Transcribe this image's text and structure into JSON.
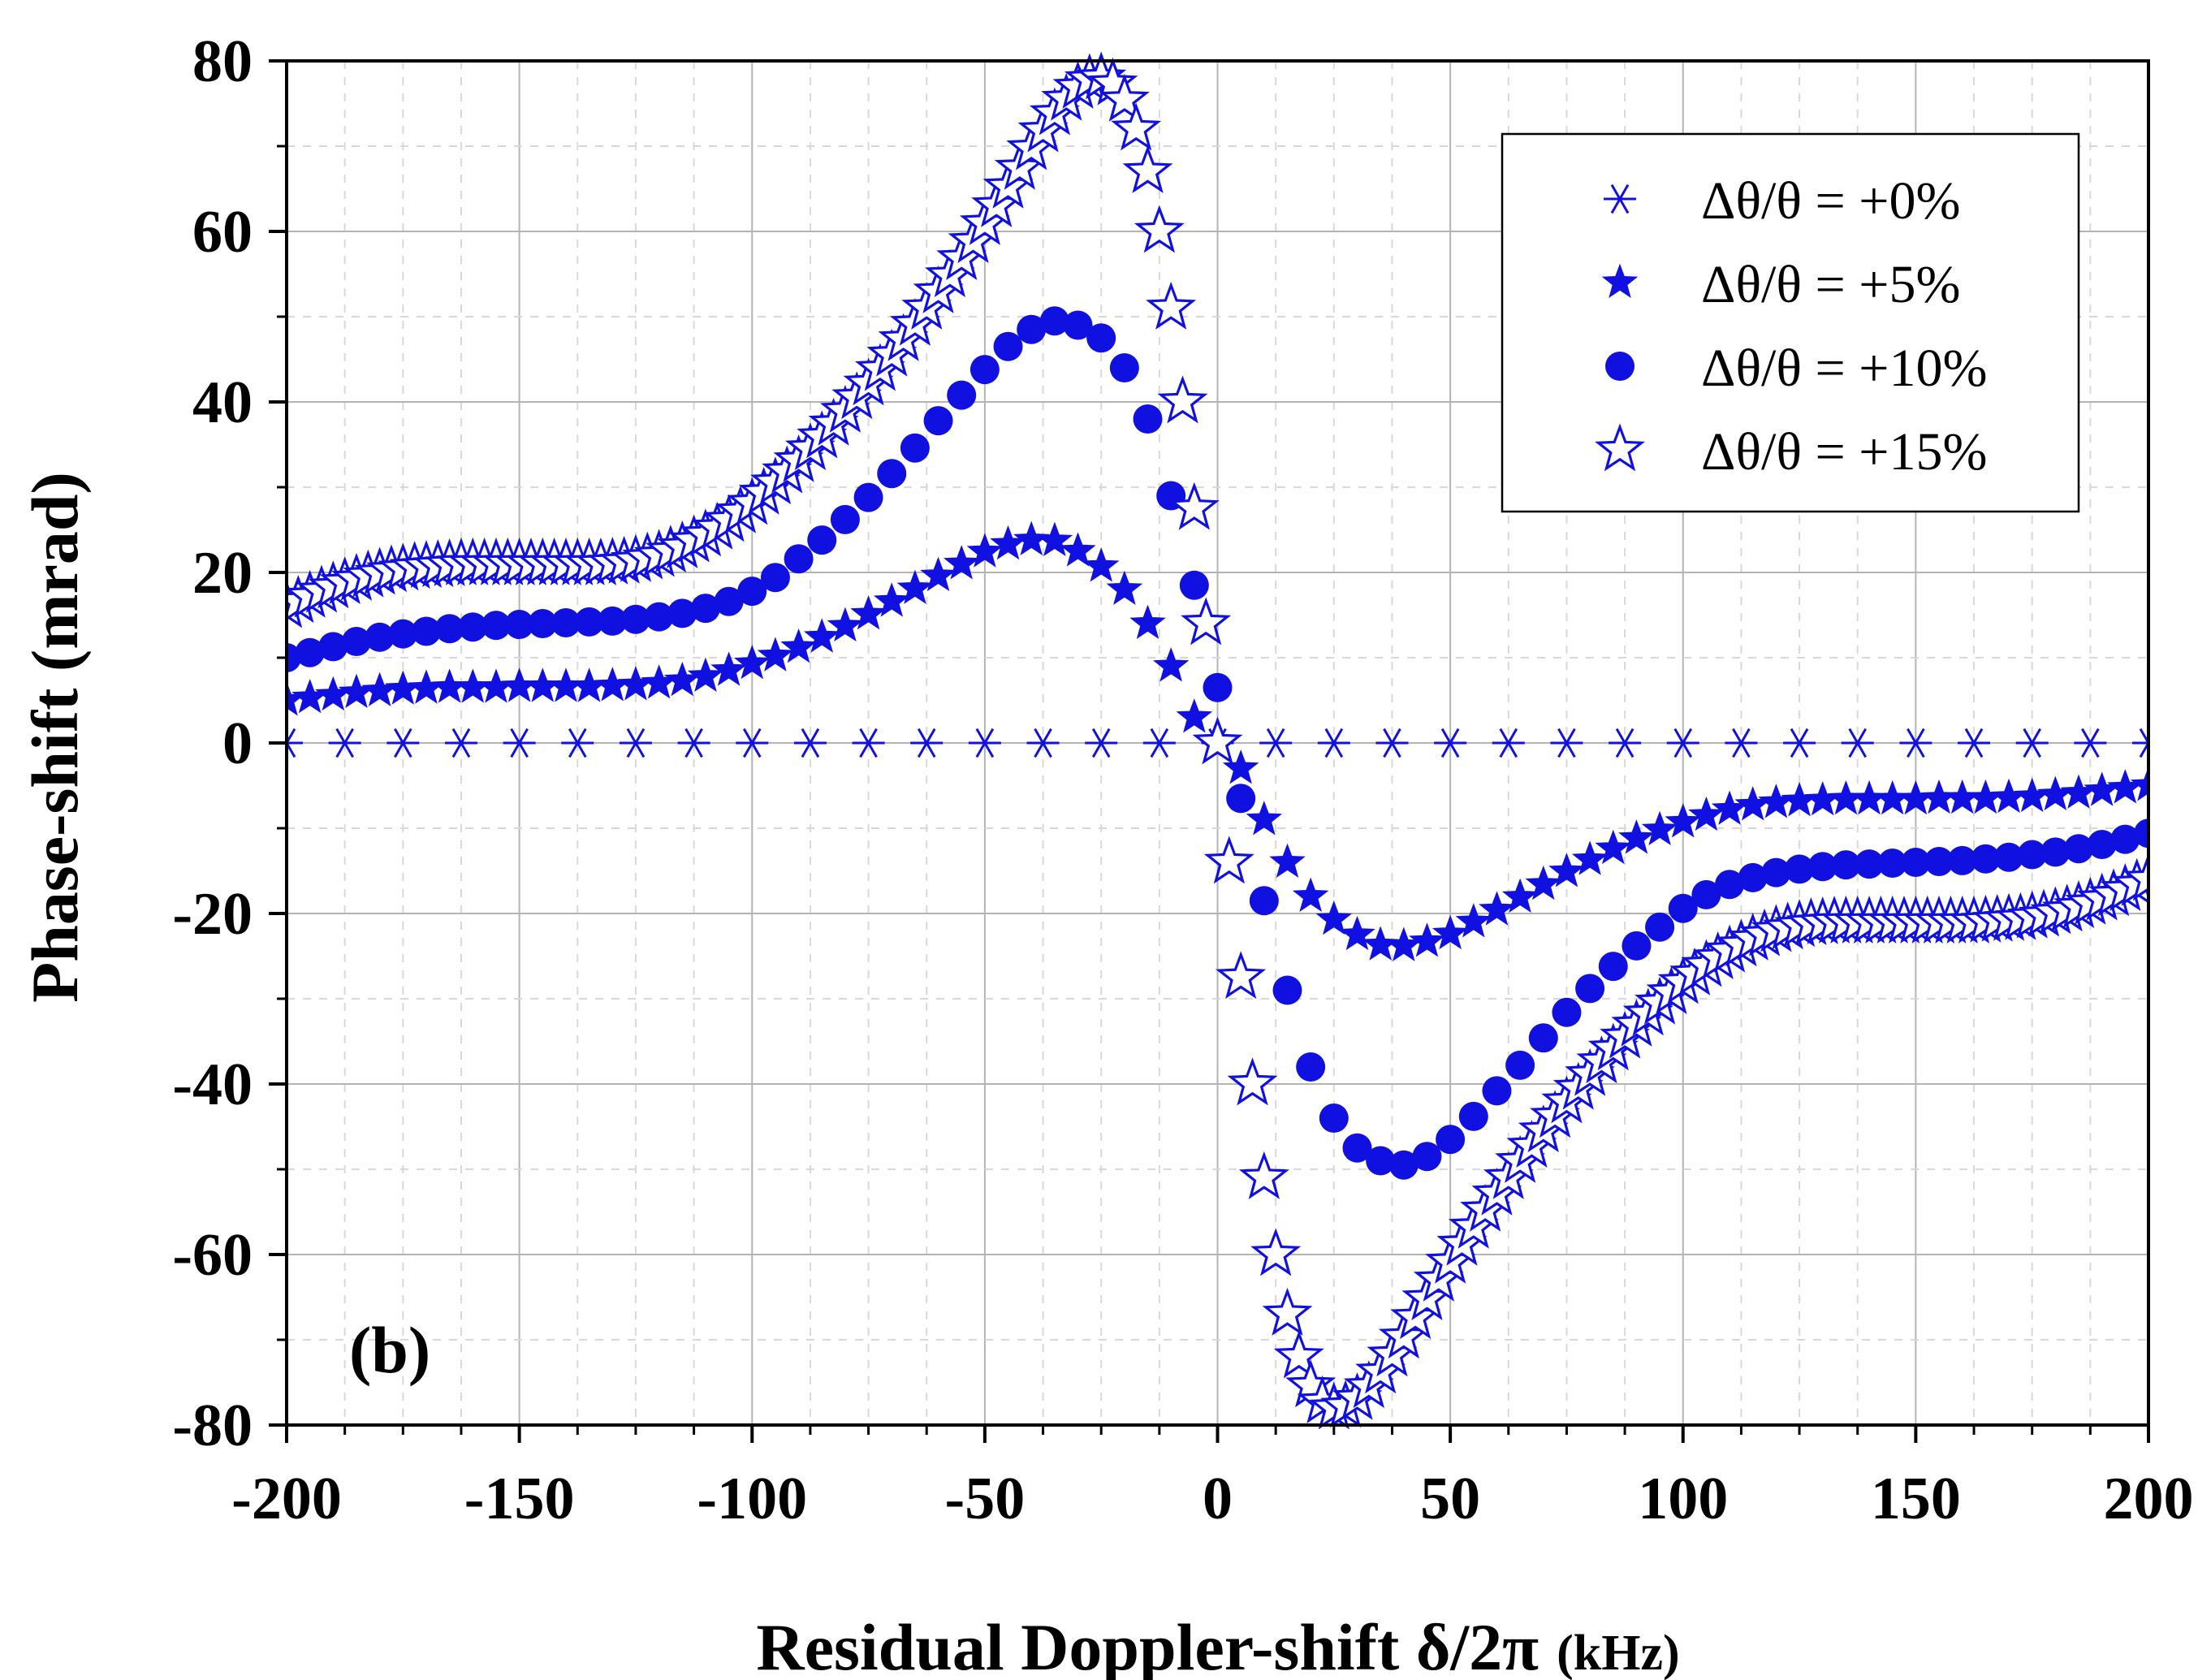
{
  "chart_data": {
    "type": "scatter",
    "panel_label": "(b)",
    "xlabel": "Residual Doppler-shift δ/2π",
    "xlabel_unit": "(kHz)",
    "ylabel": "Phase-shift (mrad)",
    "xlim": [
      -200,
      200
    ],
    "ylim": [
      -80,
      80
    ],
    "xticks": [
      -200,
      -150,
      -100,
      -50,
      0,
      50,
      100,
      150,
      200
    ],
    "yticks": [
      -80,
      -60,
      -40,
      -20,
      0,
      20,
      40,
      60,
      80
    ],
    "grid": true,
    "legend_position": "top-right",
    "colors": {
      "series": "#1010e0",
      "grid": "#b4b4b4",
      "axis": "#000000"
    },
    "series": [
      {
        "name": "Δθ/θ = +0%",
        "marker": "asterisk",
        "x": [
          -200,
          -187.5,
          -175,
          -162.5,
          -150,
          -137.5,
          -125,
          -112.5,
          -100,
          -87.5,
          -75,
          -62.5,
          -50,
          -37.5,
          -25,
          -12.5,
          0,
          12.5,
          25,
          37.5,
          50,
          62.5,
          75,
          87.5,
          100,
          112.5,
          125,
          137.5,
          150,
          162.5,
          175,
          187.5,
          200
        ],
        "y": [
          0,
          0,
          0,
          0,
          0,
          0,
          0,
          0,
          0,
          0,
          0,
          0,
          0,
          0,
          0,
          0,
          0,
          0,
          0,
          0,
          0,
          0,
          0,
          0,
          0,
          0,
          0,
          0,
          0,
          0,
          0,
          0,
          0
        ]
      },
      {
        "name": "Δθ/θ = +5%",
        "marker": "filled-star",
        "x": [
          -200,
          -195,
          -190,
          -185,
          -180,
          -175,
          -170,
          -165,
          -160,
          -155,
          -150,
          -145,
          -140,
          -135,
          -130,
          -125,
          -120,
          -115,
          -110,
          -105,
          -100,
          -95,
          -90,
          -85,
          -80,
          -75,
          -70,
          -65,
          -60,
          -55,
          -50,
          -45,
          -40,
          -35,
          -30,
          -25,
          -20,
          -15,
          -10,
          -5,
          0,
          5,
          10,
          15,
          20,
          25,
          30,
          35,
          40,
          45,
          50,
          55,
          60,
          65,
          70,
          75,
          80,
          85,
          90,
          95,
          100,
          105,
          110,
          115,
          120,
          125,
          130,
          135,
          140,
          145,
          150,
          155,
          160,
          165,
          170,
          175,
          180,
          185,
          190,
          195,
          200
        ],
        "y": [
          5.0,
          5.3,
          5.6,
          5.9,
          6.1,
          6.3,
          6.4,
          6.5,
          6.5,
          6.5,
          6.6,
          6.6,
          6.6,
          6.6,
          6.7,
          6.8,
          7.0,
          7.3,
          7.8,
          8.5,
          9.3,
          10.2,
          11.2,
          12.4,
          13.7,
          15.1,
          16.6,
          18.1,
          19.6,
          21.0,
          22.4,
          23.3,
          23.8,
          23.7,
          22.5,
          20.7,
          18.0,
          14.0,
          9.0,
          3.0,
          0,
          -3.0,
          -9.0,
          -14.0,
          -18.0,
          -20.7,
          -22.5,
          -23.7,
          -23.8,
          -23.3,
          -22.4,
          -21.0,
          -19.6,
          -18.1,
          -16.6,
          -15.1,
          -13.7,
          -12.4,
          -11.2,
          -10.2,
          -9.3,
          -8.5,
          -7.8,
          -7.3,
          -7.0,
          -6.8,
          -6.7,
          -6.6,
          -6.6,
          -6.6,
          -6.6,
          -6.5,
          -6.5,
          -6.5,
          -6.4,
          -6.3,
          -6.1,
          -5.9,
          -5.6,
          -5.3,
          -5.0
        ]
      },
      {
        "name": "Δθ/θ = +10%",
        "marker": "filled-circle",
        "x": [
          -200,
          -195,
          -190,
          -185,
          -180,
          -175,
          -170,
          -165,
          -160,
          -155,
          -150,
          -145,
          -140,
          -135,
          -130,
          -125,
          -120,
          -115,
          -110,
          -105,
          -100,
          -95,
          -90,
          -85,
          -80,
          -75,
          -70,
          -65,
          -60,
          -55,
          -50,
          -45,
          -40,
          -35,
          -30,
          -25,
          -20,
          -15,
          -10,
          -5,
          0,
          5,
          10,
          15,
          20,
          25,
          30,
          35,
          40,
          45,
          50,
          55,
          60,
          65,
          70,
          75,
          80,
          85,
          90,
          95,
          100,
          105,
          110,
          115,
          120,
          125,
          130,
          135,
          140,
          145,
          150,
          155,
          160,
          165,
          170,
          175,
          180,
          185,
          190,
          195,
          200
        ],
        "y": [
          10.0,
          10.6,
          11.3,
          11.9,
          12.4,
          12.8,
          13.1,
          13.4,
          13.6,
          13.8,
          13.9,
          14.0,
          14.1,
          14.2,
          14.3,
          14.5,
          14.8,
          15.2,
          15.8,
          16.6,
          17.8,
          19.4,
          21.6,
          23.8,
          26.2,
          28.8,
          31.6,
          34.6,
          37.8,
          40.8,
          43.8,
          46.5,
          48.5,
          49.5,
          49.0,
          47.5,
          44.0,
          38.0,
          29.0,
          18.5,
          6.5,
          -6.5,
          -18.5,
          -29.0,
          -38.0,
          -44.0,
          -47.5,
          -49.0,
          -49.5,
          -48.5,
          -46.5,
          -43.8,
          -40.8,
          -37.8,
          -34.6,
          -31.6,
          -28.8,
          -26.2,
          -23.8,
          -21.6,
          -19.4,
          -17.8,
          -16.6,
          -15.8,
          -15.2,
          -14.8,
          -14.5,
          -14.3,
          -14.2,
          -14.1,
          -14.0,
          -13.9,
          -13.8,
          -13.6,
          -13.4,
          -13.1,
          -12.8,
          -12.4,
          -11.9,
          -11.3,
          -10.6
        ]
      },
      {
        "name": "Δθ/θ = +15%",
        "marker": "open-star",
        "x": [
          -200,
          -197.5,
          -195,
          -192.5,
          -190,
          -187.5,
          -185,
          -182.5,
          -180,
          -177.5,
          -175,
          -172.5,
          -170,
          -167.5,
          -165,
          -162.5,
          -160,
          -157.5,
          -155,
          -152.5,
          -150,
          -147.5,
          -145,
          -142.5,
          -140,
          -137.5,
          -135,
          -132.5,
          -130,
          -127.5,
          -125,
          -122.5,
          -120,
          -117.5,
          -115,
          -112.5,
          -110,
          -107.5,
          -105,
          -102.5,
          -100,
          -97.5,
          -95,
          -92.5,
          -90,
          -87.5,
          -85,
          -82.5,
          -80,
          -77.5,
          -75,
          -72.5,
          -70,
          -67.5,
          -65,
          -62.5,
          -60,
          -57.5,
          -55,
          -52.5,
          -50,
          -47.5,
          -45,
          -42.5,
          -40,
          -37.5,
          -35,
          -32.5,
          -30,
          -27.5,
          -25,
          -22.5,
          -20,
          -17.5,
          -15,
          -12.5,
          -10,
          -7.5,
          -5,
          -2.5,
          0,
          2.5,
          5,
          7.5,
          10,
          12.5,
          15,
          17.5,
          20,
          22.5,
          25,
          27.5,
          30,
          32.5,
          35,
          37.5,
          40,
          42.5,
          45,
          47.5,
          50,
          52.5,
          55,
          57.5,
          60,
          62.5,
          65,
          67.5,
          70,
          72.5,
          75,
          77.5,
          80,
          82.5,
          85,
          87.5,
          90,
          92.5,
          95,
          97.5,
          100,
          102.5,
          105,
          107.5,
          110,
          112.5,
          115,
          117.5,
          120,
          122.5,
          125,
          127.5,
          130,
          132.5,
          135,
          137.5,
          140,
          142.5,
          145,
          147.5,
          150,
          152.5,
          155,
          157.5,
          160,
          162.5,
          165,
          167.5,
          170,
          172.5,
          175,
          177.5,
          180,
          182.5,
          185,
          187.5,
          190,
          192.5,
          195,
          197.5,
          200
        ],
        "y": [
          16.0,
          16.6,
          17.2,
          17.8,
          18.3,
          18.8,
          19.2,
          19.6,
          19.9,
          20.2,
          20.4,
          20.6,
          20.7,
          20.8,
          20.9,
          21.0,
          21.0,
          21.0,
          21.0,
          21.0,
          21.0,
          21.0,
          21.0,
          21.0,
          21.0,
          21.0,
          21.0,
          21.0,
          21.1,
          21.2,
          21.4,
          21.7,
          22.0,
          22.5,
          23.0,
          23.7,
          24.4,
          25.2,
          26.1,
          27.1,
          28.1,
          29.3,
          30.5,
          31.8,
          33.1,
          34.5,
          35.9,
          37.4,
          38.9,
          40.5,
          42.1,
          43.8,
          45.5,
          47.3,
          49.1,
          51.0,
          52.9,
          54.8,
          56.8,
          58.8,
          60.9,
          63.0,
          65.2,
          67.4,
          69.7,
          71.8,
          73.8,
          75.5,
          76.9,
          77.8,
          78.0,
          77.3,
          75.4,
          72.0,
          67.0,
          60.0,
          51.0,
          40.0,
          27.5,
          14.0,
          0,
          -14.0,
          -27.5,
          -40.0,
          -51.0,
          -60.0,
          -67.0,
          -72.0,
          -75.4,
          -77.3,
          -78.0,
          -77.8,
          -76.9,
          -75.5,
          -73.8,
          -71.8,
          -69.7,
          -67.4,
          -65.2,
          -63.0,
          -60.9,
          -58.8,
          -56.8,
          -54.8,
          -52.9,
          -51.0,
          -49.1,
          -47.3,
          -45.5,
          -43.8,
          -42.1,
          -40.5,
          -38.9,
          -37.4,
          -35.9,
          -34.5,
          -33.1,
          -31.8,
          -30.5,
          -29.3,
          -28.1,
          -27.1,
          -26.1,
          -25.2,
          -24.4,
          -23.7,
          -23.0,
          -22.5,
          -22.0,
          -21.7,
          -21.4,
          -21.2,
          -21.1,
          -21.0,
          -21.0,
          -21.0,
          -21.0,
          -21.0,
          -21.0,
          -21.0,
          -21.0,
          -21.0,
          -21.0,
          -21.0,
          -21.0,
          -21.0,
          -20.9,
          -20.8,
          -20.7,
          -20.6,
          -20.4,
          -20.2,
          -19.9,
          -19.6,
          -19.2,
          -18.8,
          -18.3,
          -17.8,
          -17.2,
          -16.6,
          -16.0
        ]
      }
    ]
  }
}
